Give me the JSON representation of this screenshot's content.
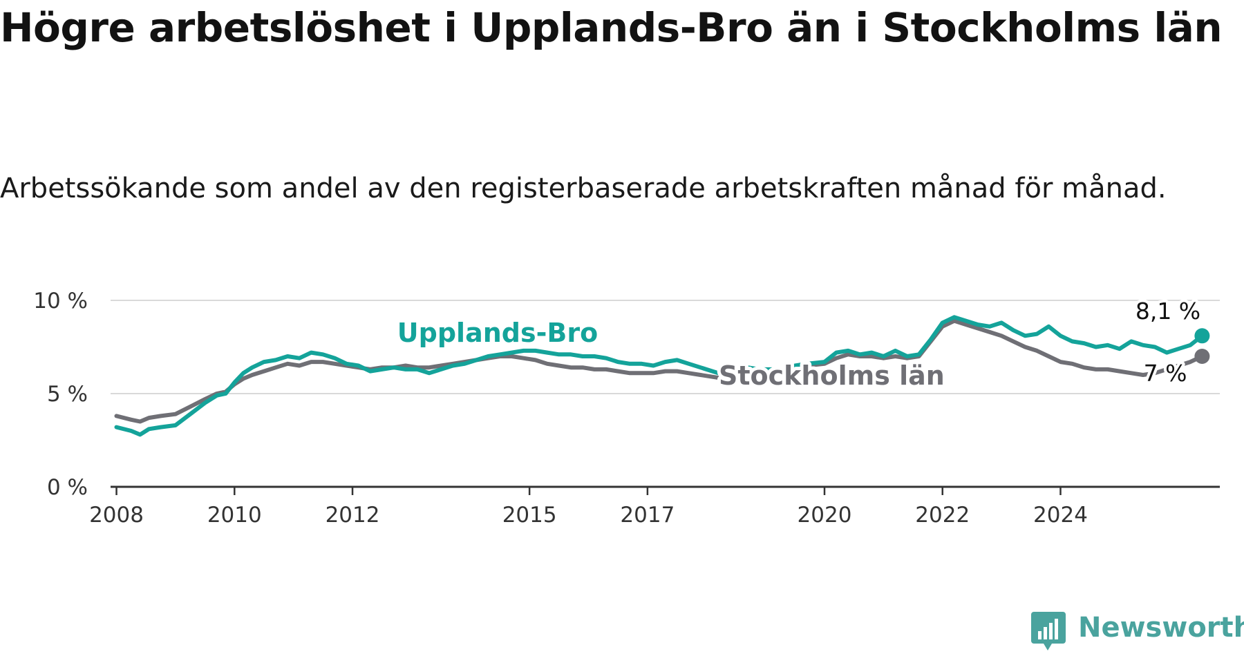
{
  "title": "Högre arbetslöshet i Upplands-Bro än i Stockholms län",
  "subtitle": "Arbetssökande som andel av den registerbaserade arbetskraften månad för månad.",
  "brand": {
    "name": "Newsworthy",
    "logo_icon": "newsworthy-logo-icon",
    "color": "#4aa39e"
  },
  "chart_data": {
    "type": "line",
    "title": "Högre arbetslöshet i Upplands-Bro än i Stockholms län",
    "subtitle": "Arbetssökande som andel av den registerbaserade arbetskraften månad för månad.",
    "xlabel": "",
    "ylabel": "",
    "xlim": [
      2007.9,
      2026.7
    ],
    "ylim": [
      0,
      10
    ],
    "y_ticks": [
      0,
      5,
      10
    ],
    "y_tick_labels": [
      "0 %",
      "5 %",
      "10 %"
    ],
    "x_ticks": [
      2008,
      2010,
      2012,
      2015,
      2017,
      2020,
      2022,
      2024
    ],
    "x_tick_labels": [
      "2008",
      "2010",
      "2012",
      "2015",
      "2017",
      "2020",
      "2022",
      "2024"
    ],
    "grid": true,
    "series": [
      {
        "name": "Upplands-Bro",
        "color": "#14a39a",
        "label_bold": true,
        "end_label": "8,1 %",
        "points": [
          [
            2008.0,
            3.2
          ],
          [
            2008.25,
            3.0
          ],
          [
            2008.4,
            2.8
          ],
          [
            2008.55,
            3.1
          ],
          [
            2008.75,
            3.2
          ],
          [
            2009.0,
            3.3
          ],
          [
            2009.25,
            3.9
          ],
          [
            2009.5,
            4.5
          ],
          [
            2009.7,
            4.9
          ],
          [
            2009.85,
            5.0
          ],
          [
            2010.0,
            5.6
          ],
          [
            2010.15,
            6.1
          ],
          [
            2010.3,
            6.4
          ],
          [
            2010.5,
            6.7
          ],
          [
            2010.7,
            6.8
          ],
          [
            2010.9,
            7.0
          ],
          [
            2011.1,
            6.9
          ],
          [
            2011.3,
            7.2
          ],
          [
            2011.5,
            7.1
          ],
          [
            2011.7,
            6.9
          ],
          [
            2011.9,
            6.6
          ],
          [
            2012.1,
            6.5
          ],
          [
            2012.3,
            6.2
          ],
          [
            2012.5,
            6.3
          ],
          [
            2012.7,
            6.4
          ],
          [
            2012.9,
            6.3
          ],
          [
            2013.1,
            6.3
          ],
          [
            2013.3,
            6.1
          ],
          [
            2013.5,
            6.3
          ],
          [
            2013.7,
            6.5
          ],
          [
            2013.9,
            6.6
          ],
          [
            2014.1,
            6.8
          ],
          [
            2014.3,
            7.0
          ],
          [
            2014.5,
            7.1
          ],
          [
            2014.7,
            7.2
          ],
          [
            2014.9,
            7.3
          ],
          [
            2015.1,
            7.3
          ],
          [
            2015.3,
            7.2
          ],
          [
            2015.5,
            7.1
          ],
          [
            2015.7,
            7.1
          ],
          [
            2015.9,
            7.0
          ],
          [
            2016.1,
            7.0
          ],
          [
            2016.3,
            6.9
          ],
          [
            2016.5,
            6.7
          ],
          [
            2016.7,
            6.6
          ],
          [
            2016.9,
            6.6
          ],
          [
            2017.1,
            6.5
          ],
          [
            2017.3,
            6.7
          ],
          [
            2017.5,
            6.8
          ],
          [
            2017.7,
            6.6
          ],
          [
            2017.9,
            6.4
          ],
          [
            2018.1,
            6.2
          ],
          [
            2018.3,
            6.0
          ],
          [
            2018.5,
            6.2
          ],
          [
            2018.7,
            6.4
          ],
          [
            2018.9,
            6.3
          ],
          [
            2019.1,
            6.3
          ],
          [
            2019.3,
            6.2
          ],
          [
            2019.5,
            6.5
          ],
          [
            2019.7,
            6.6
          ],
          [
            2020.0,
            6.7
          ],
          [
            2020.2,
            7.2
          ],
          [
            2020.4,
            7.3
          ],
          [
            2020.6,
            7.1
          ],
          [
            2020.8,
            7.2
          ],
          [
            2021.0,
            7.0
          ],
          [
            2021.2,
            7.3
          ],
          [
            2021.4,
            7.0
          ],
          [
            2021.6,
            7.1
          ],
          [
            2021.8,
            7.9
          ],
          [
            2022.0,
            8.8
          ],
          [
            2022.2,
            9.1
          ],
          [
            2022.4,
            8.9
          ],
          [
            2022.6,
            8.7
          ],
          [
            2022.8,
            8.6
          ],
          [
            2023.0,
            8.8
          ],
          [
            2023.2,
            8.4
          ],
          [
            2023.4,
            8.1
          ],
          [
            2023.6,
            8.2
          ],
          [
            2023.8,
            8.6
          ],
          [
            2024.0,
            8.1
          ],
          [
            2024.2,
            7.8
          ],
          [
            2024.4,
            7.7
          ],
          [
            2024.6,
            7.5
          ],
          [
            2024.8,
            7.6
          ],
          [
            2025.0,
            7.4
          ],
          [
            2025.2,
            7.8
          ],
          [
            2025.4,
            7.6
          ],
          [
            2025.6,
            7.5
          ],
          [
            2025.8,
            7.2
          ],
          [
            2026.0,
            7.4
          ],
          [
            2026.2,
            7.6
          ],
          [
            2026.4,
            8.1
          ]
        ]
      },
      {
        "name": "Stockholms län",
        "color": "#6f6f75",
        "label_bold": true,
        "end_label": "7 %",
        "points": [
          [
            2008.0,
            3.8
          ],
          [
            2008.25,
            3.6
          ],
          [
            2008.4,
            3.5
          ],
          [
            2008.55,
            3.7
          ],
          [
            2008.75,
            3.8
          ],
          [
            2009.0,
            3.9
          ],
          [
            2009.25,
            4.3
          ],
          [
            2009.5,
            4.7
          ],
          [
            2009.7,
            5.0
          ],
          [
            2009.85,
            5.1
          ],
          [
            2010.0,
            5.5
          ],
          [
            2010.15,
            5.8
          ],
          [
            2010.3,
            6.0
          ],
          [
            2010.5,
            6.2
          ],
          [
            2010.7,
            6.4
          ],
          [
            2010.9,
            6.6
          ],
          [
            2011.1,
            6.5
          ],
          [
            2011.3,
            6.7
          ],
          [
            2011.5,
            6.7
          ],
          [
            2011.7,
            6.6
          ],
          [
            2011.9,
            6.5
          ],
          [
            2012.1,
            6.4
          ],
          [
            2012.3,
            6.3
          ],
          [
            2012.5,
            6.4
          ],
          [
            2012.7,
            6.4
          ],
          [
            2012.9,
            6.5
          ],
          [
            2013.1,
            6.4
          ],
          [
            2013.3,
            6.4
          ],
          [
            2013.5,
            6.5
          ],
          [
            2013.7,
            6.6
          ],
          [
            2013.9,
            6.7
          ],
          [
            2014.1,
            6.8
          ],
          [
            2014.3,
            6.9
          ],
          [
            2014.5,
            7.0
          ],
          [
            2014.7,
            7.0
          ],
          [
            2014.9,
            6.9
          ],
          [
            2015.1,
            6.8
          ],
          [
            2015.3,
            6.6
          ],
          [
            2015.5,
            6.5
          ],
          [
            2015.7,
            6.4
          ],
          [
            2015.9,
            6.4
          ],
          [
            2016.1,
            6.3
          ],
          [
            2016.3,
            6.3
          ],
          [
            2016.5,
            6.2
          ],
          [
            2016.7,
            6.1
          ],
          [
            2016.9,
            6.1
          ],
          [
            2017.1,
            6.1
          ],
          [
            2017.3,
            6.2
          ],
          [
            2017.5,
            6.2
          ],
          [
            2017.7,
            6.1
          ],
          [
            2017.9,
            6.0
          ],
          [
            2018.1,
            5.9
          ],
          [
            2018.3,
            5.8
          ],
          [
            2018.5,
            5.9
          ],
          [
            2018.7,
            6.0
          ],
          [
            2018.9,
            6.0
          ],
          [
            2019.1,
            6.1
          ],
          [
            2019.3,
            6.2
          ],
          [
            2019.5,
            6.4
          ],
          [
            2019.7,
            6.5
          ],
          [
            2020.0,
            6.6
          ],
          [
            2020.2,
            6.9
          ],
          [
            2020.4,
            7.1
          ],
          [
            2020.6,
            7.0
          ],
          [
            2020.8,
            7.0
          ],
          [
            2021.0,
            6.9
          ],
          [
            2021.2,
            7.0
          ],
          [
            2021.4,
            6.9
          ],
          [
            2021.6,
            7.0
          ],
          [
            2021.8,
            7.8
          ],
          [
            2022.0,
            8.6
          ],
          [
            2022.2,
            8.9
          ],
          [
            2022.4,
            8.7
          ],
          [
            2022.6,
            8.5
          ],
          [
            2022.8,
            8.3
          ],
          [
            2023.0,
            8.1
          ],
          [
            2023.2,
            7.8
          ],
          [
            2023.4,
            7.5
          ],
          [
            2023.6,
            7.3
          ],
          [
            2023.8,
            7.0
          ],
          [
            2024.0,
            6.7
          ],
          [
            2024.2,
            6.6
          ],
          [
            2024.4,
            6.4
          ],
          [
            2024.6,
            6.3
          ],
          [
            2024.8,
            6.3
          ],
          [
            2025.0,
            6.2
          ],
          [
            2025.2,
            6.1
          ],
          [
            2025.4,
            6.0
          ],
          [
            2025.6,
            6.1
          ],
          [
            2025.8,
            6.3
          ],
          [
            2026.0,
            6.5
          ],
          [
            2026.2,
            6.7
          ],
          [
            2026.4,
            7.0
          ]
        ]
      }
    ]
  }
}
